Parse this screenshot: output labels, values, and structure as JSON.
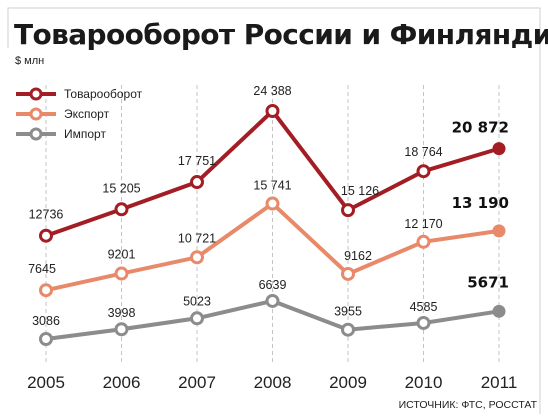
{
  "chart_data": {
    "type": "line",
    "title": "Товарооборот России и Финляндии",
    "subtitle": "$ млн",
    "source": "ИСТОЧНИК: ФТС, РОССТАТ",
    "categories": [
      "2005",
      "2006",
      "2007",
      "2008",
      "2009",
      "2010",
      "2011"
    ],
    "ylim": [
      0,
      26000
    ],
    "grid": "vertical dashed",
    "legend_position": "top-left",
    "series": [
      {
        "name": "Товарооборот",
        "color": "#a31d24",
        "values": [
          12736,
          15205,
          17751,
          24388,
          15126,
          18764,
          20872
        ],
        "labels": [
          "12736",
          "15 205",
          "17 751",
          "24 388",
          "15 126",
          "18 764",
          "20 872"
        ]
      },
      {
        "name": "Экспорт",
        "color": "#e8896a",
        "values": [
          7645,
          9201,
          10721,
          15741,
          9162,
          12170,
          13190
        ],
        "labels": [
          "7645",
          "9201",
          "10 721",
          "15 741",
          "9162",
          "12 170",
          "13 190"
        ]
      },
      {
        "name": "Импорт",
        "color": "#8c8c8c",
        "values": [
          3086,
          3998,
          5023,
          6639,
          3955,
          4585,
          5671
        ],
        "labels": [
          "3086",
          "3998",
          "5023",
          "6639",
          "3955",
          "4585",
          "5671"
        ]
      }
    ]
  }
}
